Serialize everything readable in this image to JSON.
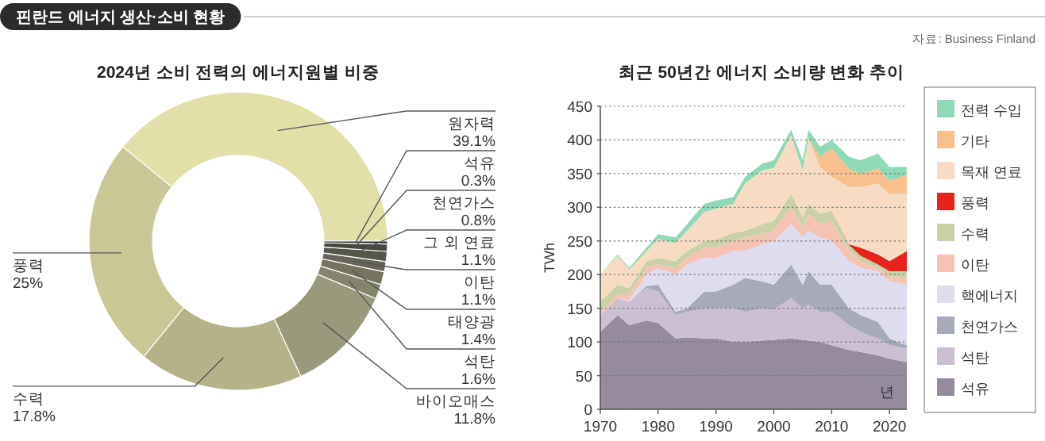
{
  "chart_data": [
    {
      "type": "donut",
      "title": "2024년 소비 전력의 에너지원별 비중",
      "annotations": [
        "핀란드 에너지 생산·소비 현황"
      ],
      "categories": [
        "원자력",
        "풍력",
        "수력",
        "바이오매스",
        "석탄",
        "태양광",
        "이탄",
        "그 외 연료",
        "천연가스",
        "석유"
      ],
      "values": [
        39.1,
        25,
        17.8,
        11.8,
        1.6,
        1.4,
        1.1,
        1.1,
        0.8,
        0.3
      ],
      "value_labels": [
        "39.1%",
        "25%",
        "17.8%",
        "11.8%",
        "1.6%",
        "1.4%",
        "1.1%",
        "1.1%",
        "0.8%",
        "0.3%"
      ],
      "colors": [
        "#e3dfa8",
        "#cac796",
        "#b5b28a",
        "#9b997b",
        "#85846f",
        "#75745f",
        "#656456",
        "#57564b",
        "#48473f",
        "#2e2e2a"
      ]
    },
    {
      "type": "area",
      "stacked": true,
      "title": "최근 50년간 에너지 소비량 변화 추이",
      "xlabel": "년",
      "ylabel": "TWh",
      "annotations": [
        "자료: Business Finland"
      ],
      "x": [
        1970,
        1973,
        1975,
        1978,
        1980,
        1983,
        1985,
        1988,
        1990,
        1993,
        1995,
        1998,
        2000,
        2003,
        2005,
        2006,
        2008,
        2010,
        2013,
        2015,
        2018,
        2020,
        2023
      ],
      "xlim": [
        1970,
        2023
      ],
      "xticks": [
        1970,
        1980,
        1990,
        2000,
        2010,
        2020
      ],
      "ylim": [
        0,
        450
      ],
      "yticks": [
        0,
        50,
        100,
        150,
        200,
        250,
        300,
        350,
        400,
        450
      ],
      "grid": "y",
      "legend": "right",
      "series": [
        {
          "name": "석유",
          "color": "#958a9e",
          "values": [
            115,
            140,
            125,
            132,
            128,
            105,
            107,
            105,
            105,
            100,
            100,
            102,
            103,
            105,
            103,
            102,
            100,
            95,
            88,
            85,
            80,
            75,
            70
          ]
        },
        {
          "name": "석탄",
          "color": "#cdbfd2",
          "values": [
            25,
            25,
            35,
            48,
            47,
            35,
            38,
            45,
            45,
            50,
            45,
            48,
            45,
            60,
            47,
            53,
            45,
            50,
            37,
            30,
            25,
            20,
            20
          ]
        },
        {
          "name": "천연가스",
          "color": "#a6aabb",
          "values": [
            0,
            0,
            0,
            3,
            10,
            5,
            5,
            25,
            25,
            35,
            50,
            40,
            37,
            50,
            35,
            50,
            40,
            40,
            25,
            25,
            25,
            10,
            5
          ]
        },
        {
          "name": "핵에너지",
          "color": "#dedcef",
          "values": [
            0,
            0,
            2,
            17,
            25,
            55,
            65,
            50,
            50,
            50,
            40,
            55,
            65,
            60,
            70,
            60,
            70,
            65,
            70,
            70,
            75,
            85,
            90
          ]
        },
        {
          "name": "이탄",
          "color": "#f5c3b3",
          "values": [
            5,
            5,
            8,
            10,
            5,
            10,
            10,
            15,
            15,
            15,
            20,
            15,
            15,
            25,
            15,
            25,
            20,
            30,
            15,
            10,
            5,
            8,
            10
          ]
        },
        {
          "name": "수력",
          "color": "#cbd1a6",
          "values": [
            15,
            15,
            10,
            10,
            10,
            10,
            10,
            10,
            12,
            12,
            10,
            15,
            15,
            20,
            15,
            15,
            15,
            15,
            9,
            8,
            5,
            7,
            10
          ]
        },
        {
          "name": "풍력",
          "color": "#e8231c",
          "values": [
            0,
            0,
            0,
            0,
            0,
            0,
            0,
            0,
            0,
            0,
            0,
            0,
            0,
            0,
            0,
            0,
            0,
            0,
            1,
            12,
            15,
            15,
            30
          ]
        },
        {
          "name": "목재 연료",
          "color": "#f7dcc3",
          "values": [
            40,
            43,
            27,
            15,
            28,
            27,
            30,
            43,
            46,
            43,
            70,
            80,
            78,
            87,
            70,
            98,
            70,
            50,
            85,
            90,
            105,
            100,
            85
          ]
        },
        {
          "name": "기타",
          "color": "#f8c08e",
          "values": [
            0,
            0,
            0,
            0,
            0,
            0,
            0,
            0,
            0,
            0,
            0,
            0,
            0,
            0,
            0,
            0,
            15,
            43,
            27,
            20,
            23,
            20,
            28
          ]
        },
        {
          "name": "전력 수입",
          "color": "#8fd9b6",
          "values": [
            0,
            2,
            3,
            5,
            7,
            8,
            10,
            12,
            12,
            10,
            10,
            10,
            12,
            8,
            15,
            12,
            15,
            12,
            18,
            20,
            22,
            20,
            12
          ]
        }
      ]
    }
  ]
}
